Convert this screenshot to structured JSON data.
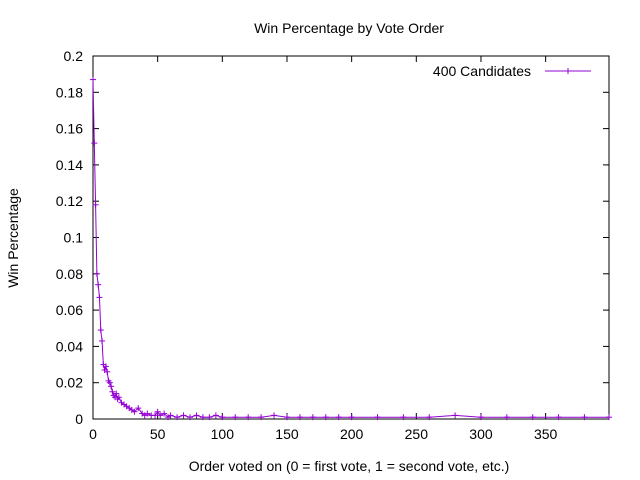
{
  "chart_data": {
    "type": "line",
    "title": "Win Percentage by Vote Order",
    "xlabel": "Order voted on (0 = first vote, 1 = second vote, etc.)",
    "ylabel": "Win Percentage",
    "xlim": [
      0,
      399
    ],
    "ylim": [
      0,
      0.2
    ],
    "xticks": [
      0,
      50,
      100,
      150,
      200,
      250,
      300,
      350
    ],
    "yticks": [
      0,
      0.02,
      0.04,
      0.06,
      0.08,
      0.1,
      0.12,
      0.14,
      0.16,
      0.18,
      0.2
    ],
    "grid": false,
    "legend_position": "top-right",
    "series": [
      {
        "name": "400 Candidates",
        "color": "#9400d3",
        "marker": "plus",
        "x": [
          0,
          1,
          2,
          3,
          4,
          5,
          6,
          7,
          8,
          9,
          10,
          11,
          12,
          13,
          14,
          15,
          16,
          17,
          18,
          19,
          20,
          22,
          24,
          26,
          28,
          30,
          32,
          35,
          38,
          40,
          42,
          45,
          48,
          50,
          52,
          55,
          58,
          60,
          65,
          70,
          75,
          80,
          85,
          90,
          95,
          100,
          110,
          120,
          130,
          140,
          150,
          160,
          170,
          180,
          190,
          200,
          220,
          240,
          260,
          280,
          300,
          320,
          340,
          360,
          380,
          399
        ],
        "y": [
          0.187,
          0.152,
          0.118,
          0.08,
          0.074,
          0.067,
          0.049,
          0.043,
          0.03,
          0.027,
          0.029,
          0.026,
          0.021,
          0.02,
          0.018,
          0.015,
          0.013,
          0.012,
          0.014,
          0.011,
          0.012,
          0.009,
          0.008,
          0.007,
          0.006,
          0.005,
          0.004,
          0.006,
          0.003,
          0.002,
          0.003,
          0.002,
          0.002,
          0.004,
          0.002,
          0.003,
          0.001,
          0.002,
          0.001,
          0.002,
          0.001,
          0.002,
          0.001,
          0.001,
          0.002,
          0.001,
          0.001,
          0.001,
          0.001,
          0.002,
          0.001,
          0.001,
          0.001,
          0.001,
          0.001,
          0.001,
          0.001,
          0.001,
          0.001,
          0.002,
          0.001,
          0.001,
          0.001,
          0.001,
          0.001,
          0.001
        ]
      }
    ]
  }
}
